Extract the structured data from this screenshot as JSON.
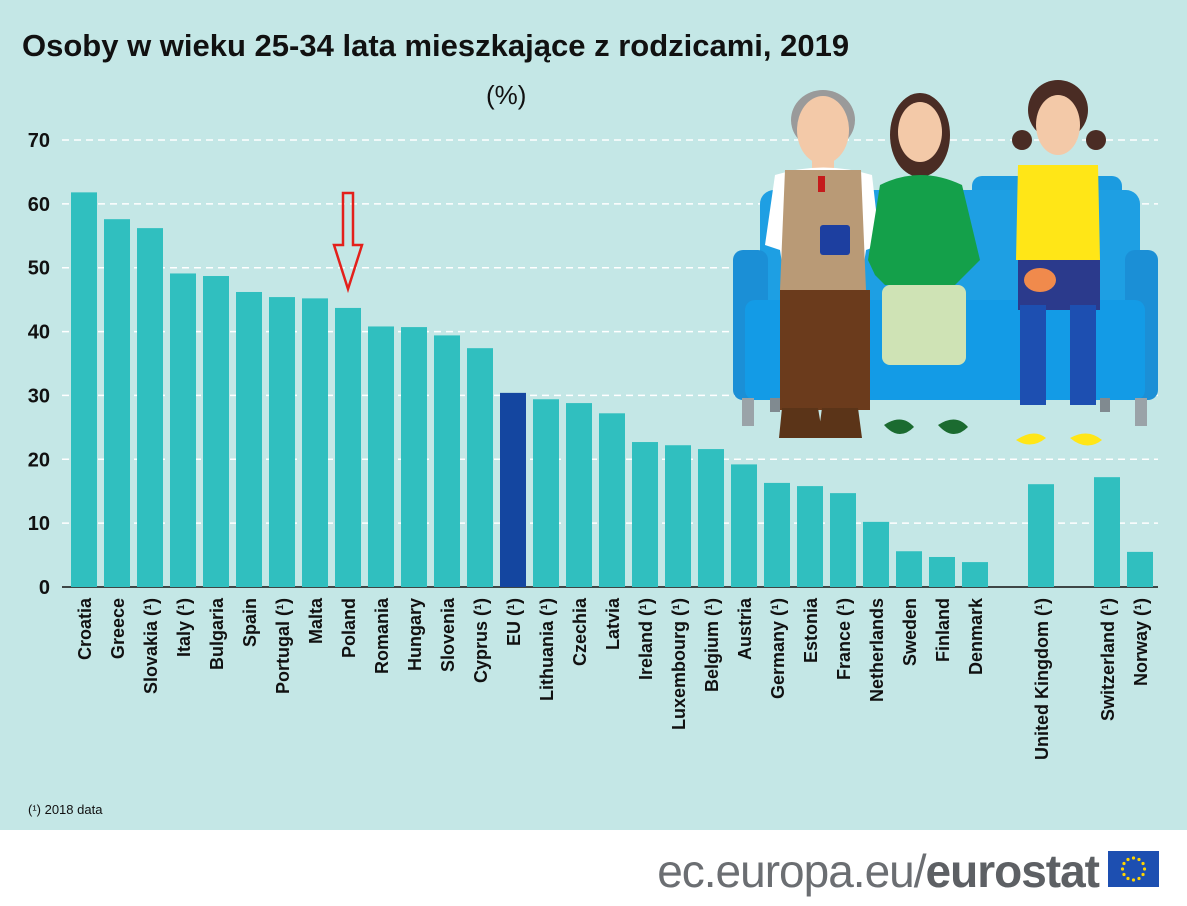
{
  "chart_data": {
    "type": "bar",
    "title": "Osoby w wieku 25-34 lata mieszkające z rodzicami, 2019",
    "unit": "(%)",
    "ylabel": "",
    "xlabel": "",
    "ylim": [
      0,
      70
    ],
    "yticks": [
      "0",
      "10",
      "20",
      "30",
      "40",
      "50",
      "60",
      "70"
    ],
    "grid": true,
    "footnote": "(¹) 2018 data",
    "highlight_annotation": "Poland",
    "categories": [
      "Croatia",
      "Greece",
      "Slovakia (¹)",
      "Italy (¹)",
      "Bulgaria",
      "Spain",
      "Portugal (¹)",
      "Malta",
      "Poland",
      "Romania",
      "Hungary",
      "Slovenia",
      "Cyprus (¹)",
      "EU (¹)",
      "Lithuania (¹)",
      "Czechia",
      "Latvia",
      "Ireland (¹)",
      "Luxembourg (¹)",
      "Belgium (¹)",
      "Austria",
      "Germany (¹)",
      "Estonia",
      "France (¹)",
      "Netherlands",
      "Sweden",
      "Finland",
      "Denmark",
      "United Kingdom (¹)",
      "Switzerland (¹)",
      "Norway (¹)"
    ],
    "groups": [
      "A",
      "A",
      "A",
      "A",
      "A",
      "A",
      "A",
      "A",
      "A",
      "A",
      "A",
      "A",
      "A",
      "A",
      "A",
      "A",
      "A",
      "A",
      "A",
      "A",
      "A",
      "A",
      "A",
      "A",
      "A",
      "A",
      "A",
      "A",
      "B",
      "C",
      "C"
    ],
    "values": [
      61.8,
      57.6,
      56.2,
      49.1,
      48.7,
      46.2,
      45.4,
      45.2,
      43.7,
      40.8,
      40.7,
      39.4,
      37.4,
      30.4,
      29.4,
      28.8,
      27.2,
      22.7,
      22.2,
      21.6,
      19.2,
      16.3,
      15.8,
      14.7,
      10.2,
      5.6,
      4.7,
      3.9,
      16.1,
      17.2,
      5.5
    ],
    "colors": {
      "bar": "#30bfbf",
      "eu": "#1446a0",
      "arrow": "#e3201b",
      "grid": "#ffffff"
    }
  },
  "footer": {
    "url_prefix": "ec.europa.eu/",
    "url_brand": "eurostat"
  }
}
